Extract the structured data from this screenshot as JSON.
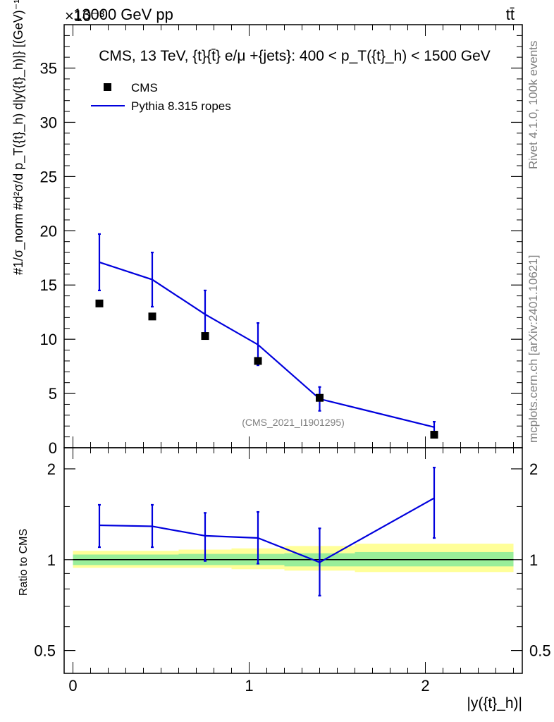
{
  "header": {
    "left": "13000 GeV pp",
    "right": "tt̄",
    "exponent_label": "×10⁻³"
  },
  "side_labels": {
    "rivet": "Rivet 4.1.0,  100k events",
    "mcplots": "mcplots.cern.ch [arXiv:2401.10621]"
  },
  "chart_data": [
    {
      "type": "scatter",
      "panel": "main",
      "title": "CMS, 13 TeV, {t}{t̄} e/μ +{jets}: 400 <  p_T({t}_h) < 1500 GeV",
      "ylabel": "#1/σ_norm #d²σ/d p_T({t}_h) d|y({t}_h)|} [(GeV)⁻¹]",
      "xlabel": "",
      "watermark": "(CMS_2021_I1901295)",
      "y_scale_note": "×10⁻³",
      "xlim": [
        -0.05,
        2.55
      ],
      "ylim": [
        0,
        39
      ],
      "yticks": [
        0,
        5,
        10,
        15,
        20,
        25,
        30,
        35
      ],
      "ytick_labels": [
        "0",
        "5",
        "10",
        "15",
        "20",
        "25",
        "30",
        "35"
      ],
      "legend": [
        "CMS",
        "Pythia 8.315 ropes"
      ],
      "legend_position": "top-left",
      "series": [
        {
          "name": "CMS",
          "style": "markers",
          "color": "#000000",
          "x": [
            0.15,
            0.45,
            0.75,
            1.05,
            1.4,
            2.05
          ],
          "y": [
            13.3,
            12.1,
            10.3,
            8.0,
            4.6,
            1.2
          ]
        },
        {
          "name": "Pythia 8.315 ropes",
          "style": "line",
          "color": "#0000dd",
          "x": [
            0.15,
            0.45,
            0.75,
            1.05,
            1.4,
            2.05
          ],
          "y": [
            17.1,
            15.5,
            12.3,
            9.5,
            4.5,
            1.9
          ],
          "err_low": [
            14.5,
            13.0,
            10.1,
            7.6,
            3.4,
            1.4
          ],
          "err_high": [
            19.7,
            18.0,
            14.5,
            11.5,
            5.6,
            2.4
          ]
        }
      ]
    },
    {
      "type": "line",
      "panel": "ratio",
      "ylabel": "Ratio to CMS",
      "xlabel": "|y({t}_h)|",
      "xlim": [
        -0.05,
        2.55
      ],
      "ylim": [
        0.42,
        2.35
      ],
      "y_scale": "log",
      "yticks": [
        0.5,
        1,
        2
      ],
      "ytick_labels": [
        "0.5",
        "1",
        "2"
      ],
      "xticks": [
        0,
        1,
        2
      ],
      "xtick_labels": [
        "0",
        "1",
        "2"
      ],
      "bin_edges": [
        0.0,
        0.3,
        0.6,
        0.9,
        1.2,
        1.6,
        2.5
      ],
      "band_stat": [
        [
          0.96,
          1.04
        ],
        [
          0.96,
          1.04
        ],
        [
          0.96,
          1.045
        ],
        [
          0.96,
          1.045
        ],
        [
          0.95,
          1.05
        ],
        [
          0.95,
          1.06
        ]
      ],
      "band_total": [
        [
          0.94,
          1.07
        ],
        [
          0.94,
          1.07
        ],
        [
          0.94,
          1.08
        ],
        [
          0.93,
          1.09
        ],
        [
          0.92,
          1.11
        ],
        [
          0.91,
          1.13
        ]
      ],
      "series": [
        {
          "name": "Pythia 8.315 ropes",
          "color": "#0000dd",
          "x": [
            0.15,
            0.45,
            0.75,
            1.05,
            1.4,
            2.05
          ],
          "y": [
            1.3,
            1.29,
            1.2,
            1.18,
            0.98,
            1.6
          ],
          "err_low": [
            1.1,
            1.1,
            0.99,
            0.97,
            0.76,
            1.18
          ],
          "err_high": [
            1.52,
            1.52,
            1.43,
            1.44,
            1.27,
            2.02
          ]
        }
      ]
    }
  ]
}
